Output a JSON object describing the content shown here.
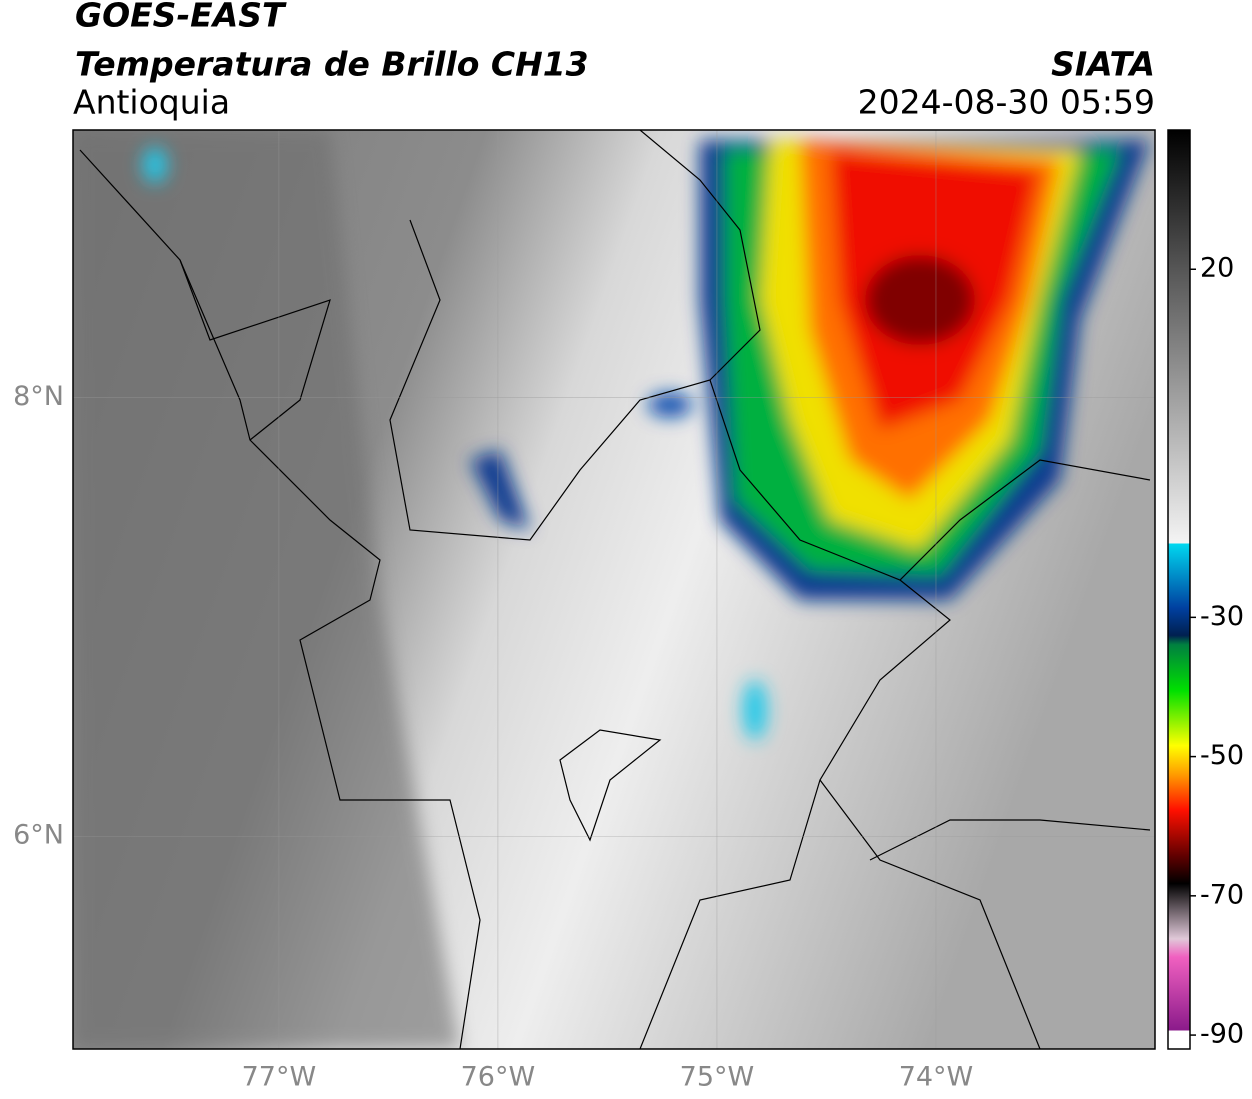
{
  "header": {
    "title": "GOES-EAST",
    "subtitle": "Temperatura de Brillo CH13",
    "region": "Antioquia",
    "source": "SIATA",
    "timestamp": "2024-08-30 05:59"
  },
  "map": {
    "xlim": [
      -77.94,
      -73.0
    ],
    "ylim": [
      5.03,
      9.22
    ],
    "xticks": [
      {
        "value": -77,
        "label": "77°W"
      },
      {
        "value": -76,
        "label": "76°W"
      },
      {
        "value": -75,
        "label": "75°W"
      },
      {
        "value": -74,
        "label": "74°W"
      }
    ],
    "yticks": [
      {
        "value": 8,
        "label": "8°N"
      },
      {
        "value": 6,
        "label": "6°N"
      }
    ],
    "grid": true
  },
  "colorbar": {
    "ylim": [
      -92,
      40
    ],
    "ticks": [
      20,
      -30,
      -50,
      -70,
      -90
    ]
  }
}
